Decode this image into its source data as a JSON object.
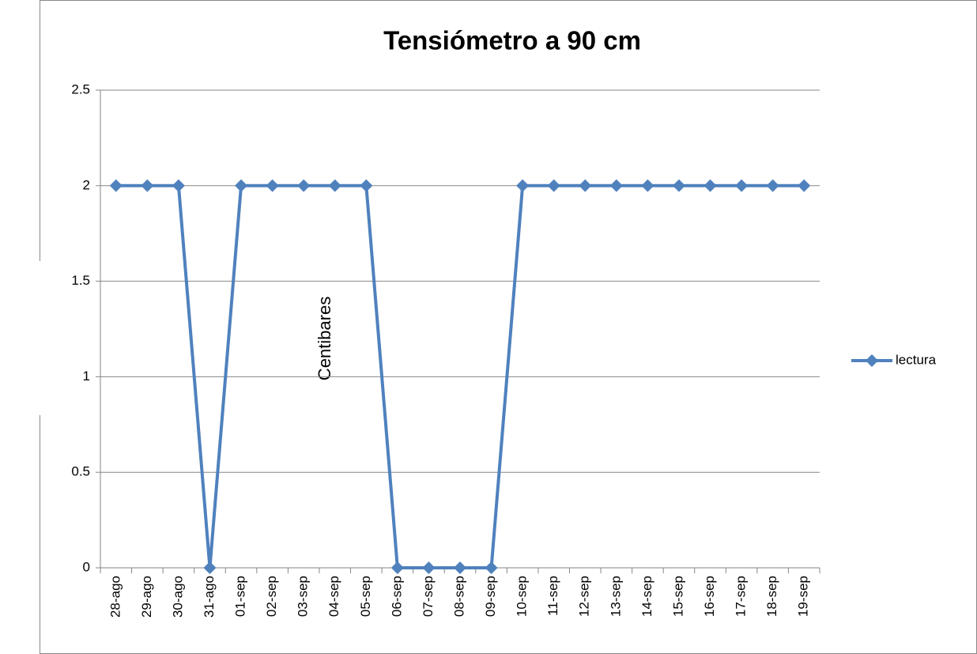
{
  "chart_data": {
    "type": "line",
    "title": "Tensiómetro a 90 cm",
    "y_label": "Centibares",
    "categories": [
      "28-ago",
      "29-ago",
      "30-ago",
      "31-ago",
      "01-sep",
      "02-sep",
      "03-sep",
      "04-sep",
      "05-sep",
      "06-sep",
      "07-sep",
      "08-sep",
      "09-sep",
      "10-sep",
      "11-sep",
      "12-sep",
      "13-sep",
      "14-sep",
      "15-sep",
      "16-sep",
      "17-sep",
      "18-sep",
      "19-sep"
    ],
    "series": [
      {
        "name": "lectura",
        "color": "#4f81bd",
        "values": [
          2,
          2,
          2,
          0,
          2,
          2,
          2,
          2,
          2,
          0,
          0,
          0,
          0,
          2,
          2,
          2,
          2,
          2,
          2,
          2,
          2,
          2,
          2
        ]
      }
    ],
    "ylim": [
      0,
      2.5
    ],
    "yticks": [
      0,
      0.5,
      1,
      1.5,
      2,
      2.5
    ],
    "grid": true,
    "legend": "right"
  }
}
